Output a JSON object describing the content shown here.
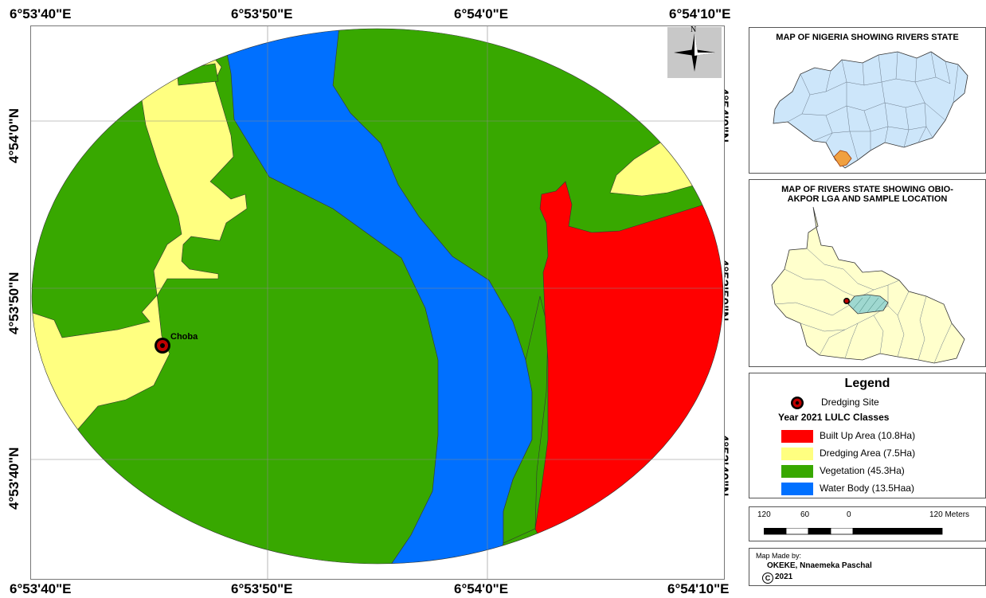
{
  "main_map": {
    "lon_labels": [
      "6°53'40\"E",
      "6°53'50\"E",
      "6°54'0\"E",
      "6°54'10\"E"
    ],
    "lat_labels": [
      "4°54'0\"N",
      "4°53'50\"N",
      "4°53'40\"N"
    ],
    "place_label": "Choba",
    "north_arrow_letter": "N",
    "class_colors": {
      "built_up": "#ff0000",
      "dredging": "#ffff80",
      "vegetation": "#38a800",
      "water": "#0070ff"
    }
  },
  "inset_nigeria": {
    "title": "MAP OF NIGERIA SHOWING RIVERS STATE"
  },
  "inset_rivers": {
    "title_line1": "MAP OF RIVERS STATE SHOWING OBIO-",
    "title_line2": "AKPOR LGA AND SAMPLE LOCATION"
  },
  "legend": {
    "title": "Legend",
    "site_label": "Dredging Site",
    "subtitle": "Year 2021 LULC Classes",
    "items": [
      {
        "label": "Built Up Area (10.8Ha)",
        "color": "#ff0000"
      },
      {
        "label": "Dredging Area (7.5Ha)",
        "color": "#ffff80"
      },
      {
        "label": "Vegetation (45.3Ha)",
        "color": "#38a800"
      },
      {
        "label": "Water Body (13.5Haa)",
        "color": "#0070ff"
      }
    ]
  },
  "scale_bar": {
    "labels": [
      "120",
      "60",
      "0",
      "120 Meters"
    ]
  },
  "credit": {
    "line1": "Map Made by:",
    "line2": "OKEKE, Nnaemeka Paschal",
    "line3": "2021",
    "copyright_symbol": "C"
  }
}
